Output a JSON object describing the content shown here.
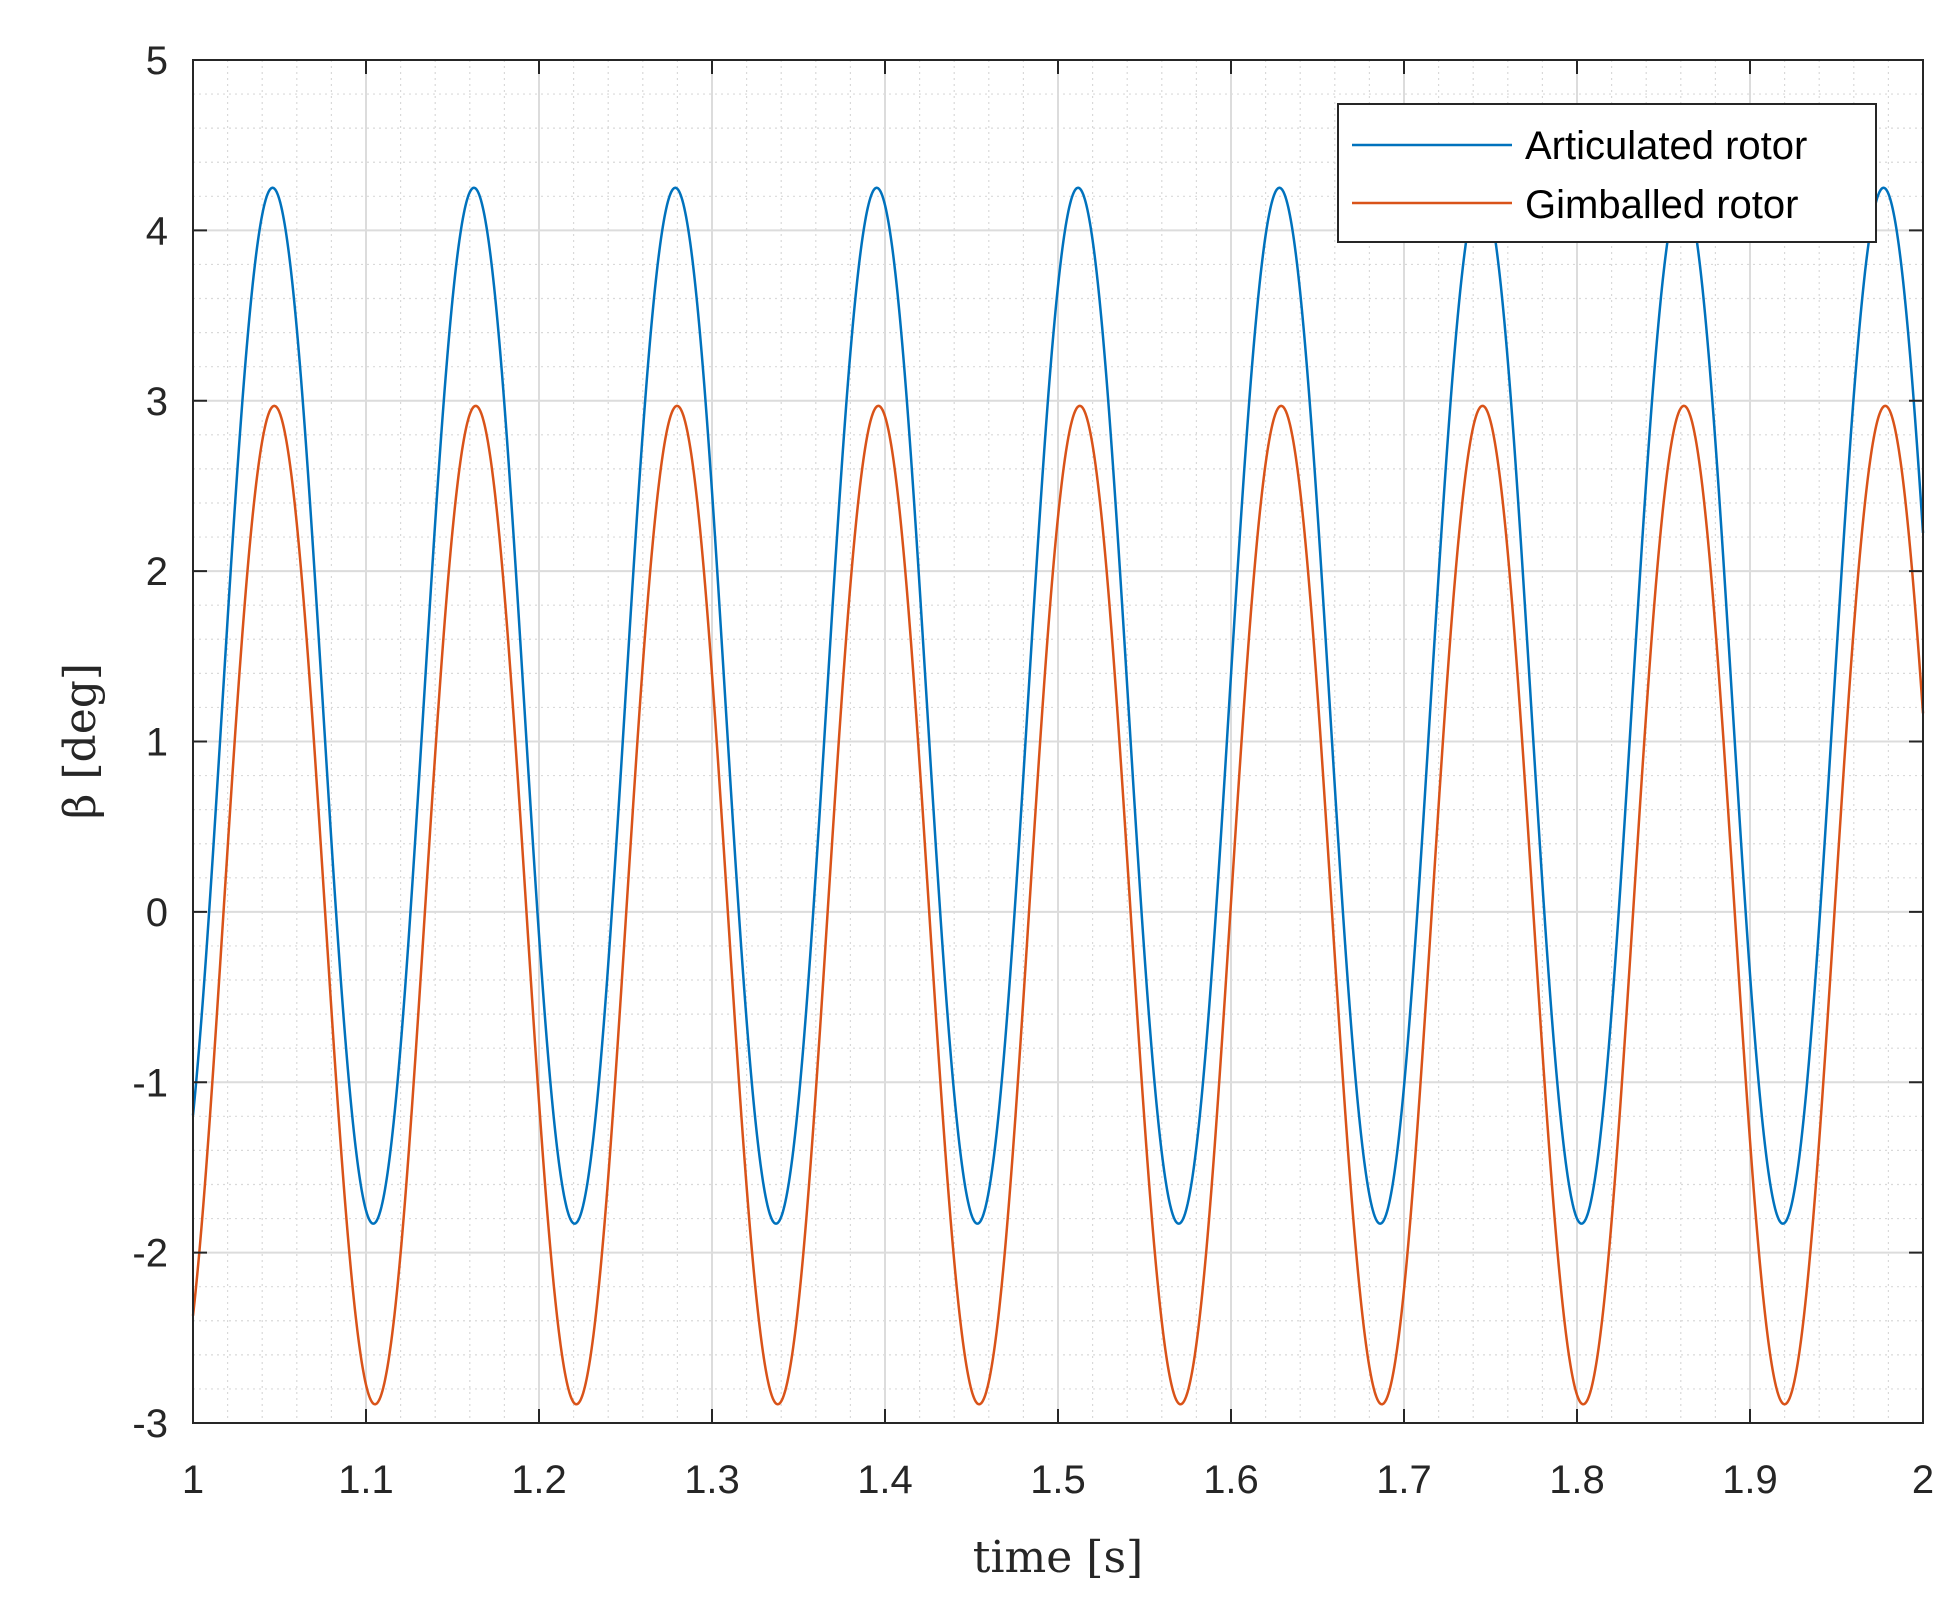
{
  "chart_data": {
    "type": "line",
    "xlabel": "time [s]",
    "ylabel": "β [deg]",
    "xlim": [
      1,
      2
    ],
    "ylim": [
      -3,
      5
    ],
    "xticks": [
      "1",
      "1.1",
      "1.2",
      "1.3",
      "1.4",
      "1.5",
      "1.6",
      "1.7",
      "1.8",
      "1.9",
      "2"
    ],
    "yticks": [
      "-3",
      "-2",
      "-1",
      "0",
      "1",
      "2",
      "3",
      "4",
      "5"
    ],
    "grid": "major and minor",
    "legend_position": "top-right",
    "series": [
      {
        "name": "Articulated rotor",
        "color": "#0072BD",
        "values_description": "",
        "amplitude": 3.04,
        "offset": 1.21,
        "period": 0.1164,
        "phase_peak_time": 1.046,
        "x": [
          1.0,
          1.046,
          1.104,
          1.162,
          1.22,
          1.279,
          1.337,
          1.395,
          1.453,
          1.511,
          1.569,
          1.628,
          1.686,
          1.744,
          1.802,
          1.86,
          1.918,
          1.977,
          2.0
        ],
        "y": [
          -1.15,
          4.25,
          -1.83,
          4.25,
          -1.83,
          4.25,
          -1.83,
          4.25,
          -1.83,
          4.25,
          -1.83,
          4.25,
          -1.83,
          4.25,
          -1.83,
          4.25,
          -1.83,
          4.25,
          1.7
        ]
      },
      {
        "name": "Gimballed rotor",
        "color": "#D95319",
        "values_description": "",
        "amplitude": 2.93,
        "offset": 0.04,
        "period": 0.1164,
        "phase_peak_time": 1.047,
        "x": [
          1.0,
          1.047,
          1.105,
          1.163,
          1.222,
          1.28,
          1.338,
          1.396,
          1.454,
          1.513,
          1.571,
          1.629,
          1.687,
          1.745,
          1.803,
          1.862,
          1.92,
          1.978,
          2.0
        ],
        "y": [
          -2.33,
          2.97,
          -2.9,
          2.97,
          -2.9,
          2.97,
          -2.9,
          2.97,
          -2.9,
          2.97,
          -2.9,
          2.97,
          -2.9,
          2.97,
          -2.9,
          2.97,
          -2.9,
          2.97,
          0.6
        ]
      }
    ]
  }
}
